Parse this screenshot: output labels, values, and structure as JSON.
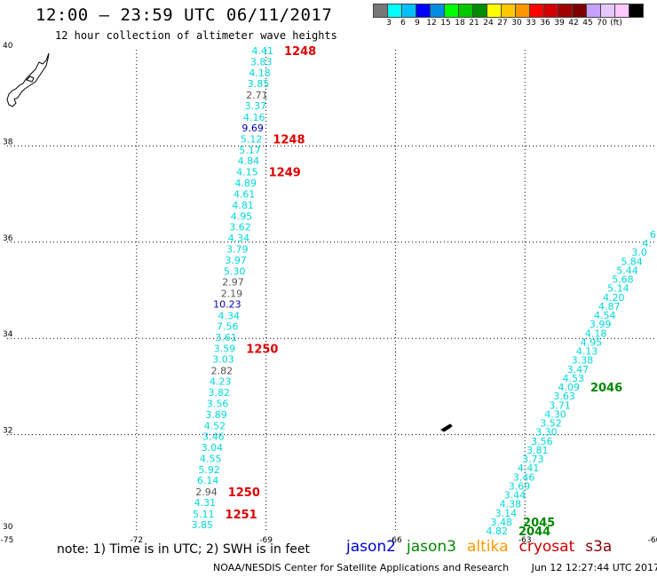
{
  "header": {
    "title": "12:00 – 23:59 UTC 06/11/2017",
    "subtitle": "12 hour collection of altimeter wave heights"
  },
  "color_scale": {
    "colors": [
      "#777777",
      "#00ffff",
      "#00c0ff",
      "#0000ff",
      "#008ce0",
      "#00ff00",
      "#00c800",
      "#008c00",
      "#ffff00",
      "#ffc800",
      "#ff9600",
      "#ff0000",
      "#d20000",
      "#a00000",
      "#7d0000",
      "#c8a0ff",
      "#e6c8ff",
      "#ffc8ff",
      "#000000"
    ],
    "labels": [
      "3",
      "6",
      "9",
      "12",
      "15",
      "18",
      "21",
      "24",
      "27",
      "30",
      "33",
      "36",
      "39",
      "42",
      "45",
      "70",
      "(ft)"
    ]
  },
  "map": {
    "lon_range": [
      -75,
      -60
    ],
    "lat_range": [
      30,
      40
    ],
    "x_ticks": [
      "-75",
      "-72",
      "-69",
      "-66",
      "-63",
      "-60"
    ],
    "y_ticks": [
      "40",
      "38",
      "36",
      "34",
      "32",
      "30"
    ]
  },
  "note": "note: 1) Time is in UTC; 2) SWH is in feet",
  "satellites": [
    {
      "name": "jason2",
      "color": "#0000cc"
    },
    {
      "name": "jason3",
      "color": "#008800"
    },
    {
      "name": "altika",
      "color": "#ff9900"
    },
    {
      "name": "cryosat",
      "color": "#cc0000"
    },
    {
      "name": "s3a",
      "color": "#880000"
    }
  ],
  "footer": {
    "agency": "NOAA/NESDIS Center for Satellite Applications and Research",
    "timestamp": "Jun 12 12:27:44 UTC 2017"
  },
  "tracks": {
    "west": [
      {
        "v": "4.41",
        "c": "cyan",
        "t": 1.0
      },
      {
        "v": "3.83",
        "c": "cyan",
        "t": 0.972
      },
      {
        "v": "4.18",
        "c": "cyan",
        "t": 0.945
      },
      {
        "v": "3.85",
        "c": "cyan",
        "t": 0.918
      },
      {
        "v": "2.71",
        "c": "gray",
        "t": 0.89
      },
      {
        "v": "3.37",
        "c": "cyan",
        "t": 0.863
      },
      {
        "v": "4.16",
        "c": "cyan",
        "t": 0.835
      },
      {
        "v": "9.69",
        "c": "navy",
        "t": 0.808
      },
      {
        "v": "5.12",
        "c": "cyan",
        "t": 0.781
      },
      {
        "v": "5.17",
        "c": "cyan",
        "t": 0.753
      },
      {
        "v": "4.84",
        "c": "cyan",
        "t": 0.726
      },
      {
        "v": "4.15",
        "c": "cyan",
        "t": 0.699
      },
      {
        "v": "4.89",
        "c": "cyan",
        "t": 0.671
      },
      {
        "v": "4.61",
        "c": "cyan",
        "t": 0.644
      },
      {
        "v": "4.81",
        "c": "cyan",
        "t": 0.616
      },
      {
        "v": "4.95",
        "c": "cyan",
        "t": 0.589
      },
      {
        "v": "3.62",
        "c": "cyan",
        "t": 0.562
      },
      {
        "v": "4.34",
        "c": "cyan",
        "t": 0.534
      },
      {
        "v": "3.79",
        "c": "cyan",
        "t": 0.507
      },
      {
        "v": "3.97",
        "c": "cyan",
        "t": 0.479
      },
      {
        "v": "5.30",
        "c": "cyan",
        "t": 0.452
      },
      {
        "v": "2.97",
        "c": "gray",
        "t": 0.425
      },
      {
        "v": "2.19",
        "c": "gray",
        "t": 0.397
      },
      {
        "v": "10.23",
        "c": "navy",
        "t": 0.37
      },
      {
        "v": "4.34",
        "c": "cyan",
        "t": 0.342
      },
      {
        "v": "7.56",
        "c": "cyan",
        "t": 0.315
      },
      {
        "v": "3.61",
        "c": "cyan",
        "t": 0.288
      },
      {
        "v": "3.59",
        "c": "cyan",
        "t": 0.26
      },
      {
        "v": "3.03",
        "c": "cyan",
        "t": 0.233
      },
      {
        "v": "2.82",
        "c": "gray",
        "t": 0.205
      },
      {
        "v": "4.23",
        "c": "cyan",
        "t": 0.178
      },
      {
        "v": "3.82",
        "c": "cyan",
        "t": 0.151
      },
      {
        "v": "3.56",
        "c": "cyan",
        "t": 0.123
      },
      {
        "v": "3.89",
        "c": "cyan",
        "t": 0.096
      },
      {
        "v": "4.52",
        "c": "cyan",
        "t": 0.068
      },
      {
        "v": "3.46",
        "c": "cyan",
        "t": 0.041
      },
      {
        "v": "3.04",
        "c": "cyan",
        "t": 0.014
      },
      {
        "v": "4.55",
        "c": "cyan",
        "t": -0.014
      },
      {
        "v": "5.92",
        "c": "cyan",
        "t": -0.041
      },
      {
        "v": "6.14",
        "c": "cyan",
        "t": -0.068
      },
      {
        "v": "2.94",
        "c": "gray",
        "t": -0.096
      },
      {
        "v": "4.31",
        "c": "cyan",
        "t": -0.123
      },
      {
        "v": "5.11",
        "c": "cyan",
        "t": -0.151
      },
      {
        "v": "3.85",
        "c": "cyan",
        "t": -0.178
      }
    ],
    "east": [
      {
        "v": "6",
        "c": "cyan",
        "t": 1.0
      },
      {
        "v": "4.",
        "c": "cyan",
        "t": 0.979
      },
      {
        "v": "3.0",
        "c": "cyan",
        "t": 0.958
      },
      {
        "v": "5.84",
        "c": "cyan",
        "t": 0.937
      },
      {
        "v": "5.44",
        "c": "cyan",
        "t": 0.916
      },
      {
        "v": "5.68",
        "c": "cyan",
        "t": 0.895
      },
      {
        "v": "5.14",
        "c": "cyan",
        "t": 0.874
      },
      {
        "v": "4.20",
        "c": "cyan",
        "t": 0.853
      },
      {
        "v": "4.87",
        "c": "cyan",
        "t": 0.832
      },
      {
        "v": "4.54",
        "c": "cyan",
        "t": 0.811
      },
      {
        "v": "3.99",
        "c": "cyan",
        "t": 0.79
      },
      {
        "v": "4.18",
        "c": "cyan",
        "t": 0.769
      },
      {
        "v": "4.95",
        "c": "cyan",
        "t": 0.748
      },
      {
        "v": "4.13",
        "c": "cyan",
        "t": 0.727
      },
      {
        "v": "3.38",
        "c": "cyan",
        "t": 0.706
      },
      {
        "v": "3.47",
        "c": "cyan",
        "t": 0.685
      },
      {
        "v": "4.53",
        "c": "cyan",
        "t": 0.664
      },
      {
        "v": "4.09",
        "c": "cyan",
        "t": 0.643
      },
      {
        "v": "3.63",
        "c": "cyan",
        "t": 0.622
      },
      {
        "v": "3.71",
        "c": "cyan",
        "t": 0.601
      },
      {
        "v": "4.30",
        "c": "cyan",
        "t": 0.58
      },
      {
        "v": "3.52",
        "c": "cyan",
        "t": 0.559
      },
      {
        "v": "3.30",
        "c": "cyan",
        "t": 0.538
      },
      {
        "v": "3.56",
        "c": "cyan",
        "t": 0.517
      },
      {
        "v": "3.81",
        "c": "cyan",
        "t": 0.496
      },
      {
        "v": "3.73",
        "c": "cyan",
        "t": 0.475
      },
      {
        "v": "4.41",
        "c": "cyan",
        "t": 0.454
      },
      {
        "v": "3.46",
        "c": "cyan",
        "t": 0.433
      },
      {
        "v": "3.69",
        "c": "cyan",
        "t": 0.412
      },
      {
        "v": "3.44",
        "c": "cyan",
        "t": 0.391
      },
      {
        "v": "4.38",
        "c": "cyan",
        "t": 0.37
      },
      {
        "v": "3.14",
        "c": "cyan",
        "t": 0.349
      },
      {
        "v": "3.48",
        "c": "cyan",
        "t": 0.328
      },
      {
        "v": "4.82",
        "c": "cyan",
        "t": 0.307
      }
    ]
  },
  "pass_labels": [
    {
      "text": "1248",
      "color": "red",
      "t": 1.0,
      "track": "west"
    },
    {
      "text": "1248",
      "color": "red",
      "t": 0.781,
      "track": "west"
    },
    {
      "text": "1249",
      "color": "red",
      "t": 0.699,
      "track": "west"
    },
    {
      "text": "1250",
      "color": "red",
      "t": 0.26,
      "track": "west"
    },
    {
      "text": "1250",
      "color": "red",
      "t": -0.096,
      "track": "west"
    },
    {
      "text": "1251",
      "color": "red",
      "t": -0.151,
      "track": "west"
    },
    {
      "text": "2046",
      "color": "green",
      "t": 0.643,
      "track": "east"
    },
    {
      "text": "2045",
      "color": "green",
      "t": 0.328,
      "track": "east"
    },
    {
      "text": "2044",
      "color": "green",
      "t": 0.307,
      "track": "east"
    }
  ]
}
